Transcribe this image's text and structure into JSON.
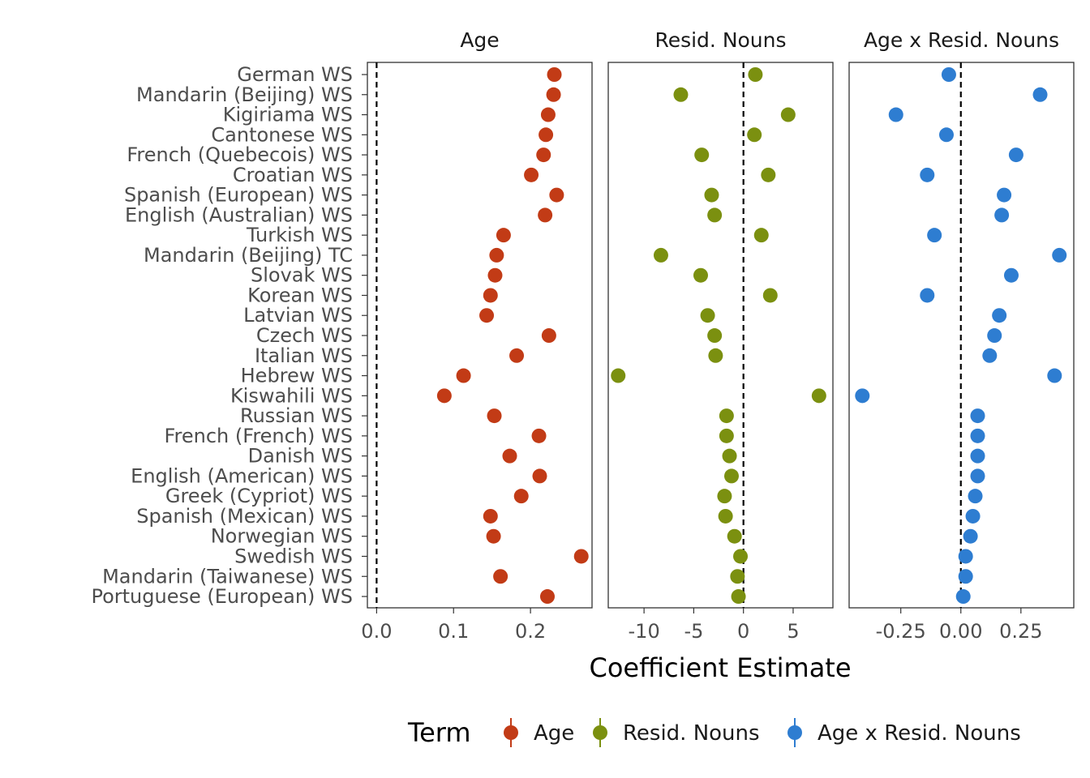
{
  "chart_data": {
    "type": "scatter",
    "xlabel": "Coefficient Estimate",
    "legend": {
      "title": "Term",
      "position": "bottom",
      "items": [
        {
          "label": "Age",
          "color": "#C23B16"
        },
        {
          "label": "Resid. Nouns",
          "color": "#7B9010"
        },
        {
          "label": "Age x Resid. Nouns",
          "color": "#2E7DD1"
        }
      ]
    },
    "categories": [
      "German WS",
      "Mandarin (Beijing) WS",
      "Kigiriama WS",
      "Cantonese WS",
      "French (Quebecois) WS",
      "Croatian WS",
      "Spanish (European) WS",
      "English (Australian) WS",
      "Turkish WS",
      "Mandarin (Beijing) TC",
      "Slovak WS",
      "Korean WS",
      "Latvian WS",
      "Czech WS",
      "Italian WS",
      "Hebrew WS",
      "Kiswahili WS",
      "Russian WS",
      "French (French) WS",
      "Danish WS",
      "English (American) WS",
      "Greek (Cypriot) WS",
      "Spanish (Mexican) WS",
      "Norwegian WS",
      "Swedish WS",
      "Mandarin (Taiwanese) WS",
      "Portuguese (European) WS"
    ],
    "panels": [
      {
        "title": "Age",
        "color": "#C23B16",
        "xlim": [
          -0.012,
          0.28
        ],
        "xticks": [
          0.0,
          0.1,
          0.2
        ],
        "xtick_labels": [
          "0.0",
          "0.1",
          "0.2"
        ],
        "vline": 0,
        "values": [
          0.231,
          0.23,
          0.223,
          0.22,
          0.217,
          0.201,
          0.234,
          0.219,
          0.165,
          0.156,
          0.154,
          0.148,
          0.143,
          0.224,
          0.182,
          0.113,
          0.088,
          0.153,
          0.211,
          0.173,
          0.212,
          0.188,
          0.148,
          0.152,
          0.266,
          0.161,
          0.222
        ]
      },
      {
        "title": "Resid. Nouns",
        "color": "#7B9010",
        "xlim": [
          -13.6,
          9.0
        ],
        "xticks": [
          -10,
          -5,
          0,
          5
        ],
        "xtick_labels": [
          "-10",
          "-5",
          "0",
          "5"
        ],
        "vline": 0,
        "values": [
          1.2,
          -6.3,
          4.5,
          1.1,
          -4.2,
          2.5,
          -3.2,
          -2.9,
          1.8,
          -8.3,
          -4.3,
          2.7,
          -3.6,
          -2.9,
          -2.8,
          -12.6,
          7.6,
          -1.7,
          -1.7,
          -1.4,
          -1.2,
          -1.9,
          -1.8,
          -0.9,
          -0.3,
          -0.6,
          -0.5
        ]
      },
      {
        "title": "Age x Resid. Nouns",
        "color": "#2E7DD1",
        "xlim": [
          -0.465,
          0.47
        ],
        "xticks": [
          -0.25,
          0.0,
          0.25
        ],
        "xtick_labels": [
          "-0.25",
          "0.00",
          "0.25"
        ],
        "vline": 0,
        "values": [
          -0.05,
          0.33,
          -0.27,
          -0.06,
          0.23,
          -0.14,
          0.18,
          0.17,
          -0.11,
          0.41,
          0.21,
          -0.14,
          0.16,
          0.14,
          0.12,
          0.39,
          -0.41,
          0.07,
          0.07,
          0.07,
          0.07,
          0.06,
          0.05,
          0.04,
          0.02,
          0.02,
          0.01
        ]
      }
    ]
  }
}
